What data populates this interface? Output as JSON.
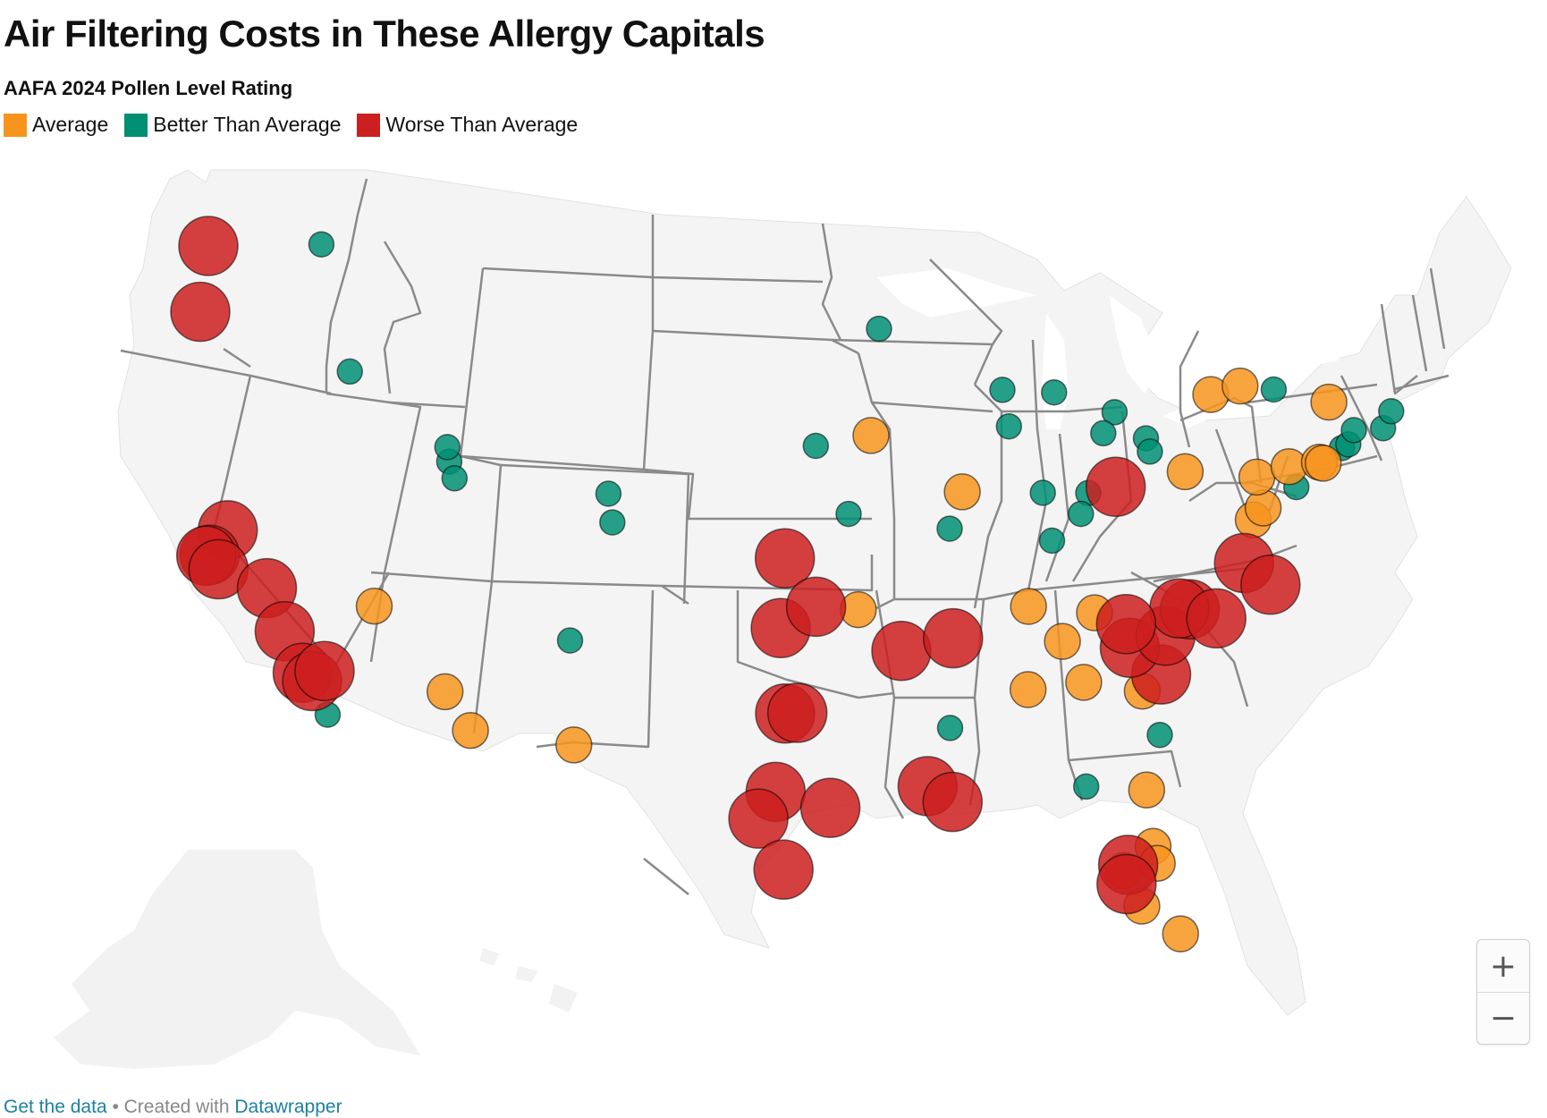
{
  "title": "Air Filtering Costs in These Allergy Capitals",
  "subtitle": "AAFA 2024 Pollen Level Rating",
  "legend": [
    {
      "label": "Average",
      "color": "#f7941d"
    },
    {
      "label": "Better Than Average",
      "color": "#008f73"
    },
    {
      "label": "Worse Than Average",
      "color": "#cc1f1f"
    }
  ],
  "zoom": {
    "in_label": "+",
    "out_label": "−"
  },
  "footer": {
    "data_link": "Get the data",
    "separator": "• Created with",
    "tool_link": "Datawrapper"
  },
  "colors": {
    "average": "#f7941d",
    "better": "#008f73",
    "worse": "#cc1f1f",
    "land": "#f4f4f4",
    "border": "#777777"
  },
  "markers": [
    {
      "lon": -122.33,
      "lat": 47.61,
      "rating": "worse"
    },
    {
      "lon": -117.43,
      "lat": 47.66,
      "rating": "better"
    },
    {
      "lon": -122.68,
      "lat": 45.52,
      "rating": "worse"
    },
    {
      "lon": -116.2,
      "lat": 43.62,
      "rating": "better"
    },
    {
      "lon": -121.49,
      "lat": 38.58,
      "rating": "worse"
    },
    {
      "lon": -122.27,
      "lat": 37.8,
      "rating": "worse"
    },
    {
      "lon": -122.42,
      "lat": 37.77,
      "rating": "worse"
    },
    {
      "lon": -121.89,
      "lat": 37.34,
      "rating": "worse"
    },
    {
      "lon": -119.79,
      "lat": 36.74,
      "rating": "worse"
    },
    {
      "lon": -119.02,
      "lat": 35.37,
      "rating": "worse"
    },
    {
      "lon": -118.24,
      "lat": 34.05,
      "rating": "worse"
    },
    {
      "lon": -117.83,
      "lat": 33.79,
      "rating": "worse"
    },
    {
      "lon": -117.29,
      "lat": 34.11,
      "rating": "worse"
    },
    {
      "lon": -117.16,
      "lat": 32.72,
      "rating": "better"
    },
    {
      "lon": -115.14,
      "lat": 36.17,
      "rating": "average"
    },
    {
      "lon": -111.89,
      "lat": 40.76,
      "rating": "better"
    },
    {
      "lon": -111.97,
      "lat": 41.22,
      "rating": "better"
    },
    {
      "lon": -111.66,
      "lat": 40.23,
      "rating": "better"
    },
    {
      "lon": -112.07,
      "lat": 33.45,
      "rating": "average"
    },
    {
      "lon": -110.97,
      "lat": 32.22,
      "rating": "average"
    },
    {
      "lon": -104.99,
      "lat": 39.74,
      "rating": "better"
    },
    {
      "lon": -104.82,
      "lat": 38.83,
      "rating": "better"
    },
    {
      "lon": -106.65,
      "lat": 35.08,
      "rating": "better"
    },
    {
      "lon": -106.49,
      "lat": 31.76,
      "rating": "average"
    },
    {
      "lon": -96.0,
      "lat": 41.26,
      "rating": "better"
    },
    {
      "lon": -93.61,
      "lat": 41.59,
      "rating": "average"
    },
    {
      "lon": -97.34,
      "lat": 37.69,
      "rating": "worse"
    },
    {
      "lon": -94.58,
      "lat": 39.1,
      "rating": "better"
    },
    {
      "lon": -97.52,
      "lat": 35.47,
      "rating": "worse"
    },
    {
      "lon": -95.99,
      "lat": 36.15,
      "rating": "worse"
    },
    {
      "lon": -94.16,
      "lat": 36.06,
      "rating": "average"
    },
    {
      "lon": -92.29,
      "lat": 34.75,
      "rating": "worse"
    },
    {
      "lon": -97.33,
      "lat": 32.76,
      "rating": "worse"
    },
    {
      "lon": -96.8,
      "lat": 32.78,
      "rating": "worse"
    },
    {
      "lon": -97.74,
      "lat": 30.27,
      "rating": "worse"
    },
    {
      "lon": -98.49,
      "lat": 29.42,
      "rating": "worse"
    },
    {
      "lon": -95.37,
      "lat": 29.76,
      "rating": "worse"
    },
    {
      "lon": -97.4,
      "lat": 27.8,
      "rating": "worse"
    },
    {
      "lon": -93.26,
      "lat": 44.98,
      "rating": "better"
    },
    {
      "lon": -87.91,
      "lat": 43.04,
      "rating": "better"
    },
    {
      "lon": -87.63,
      "lat": 41.88,
      "rating": "better"
    },
    {
      "lon": -85.67,
      "lat": 42.96,
      "rating": "better"
    },
    {
      "lon": -83.05,
      "lat": 42.33,
      "rating": "better"
    },
    {
      "lon": -83.54,
      "lat": 41.66,
      "rating": "better"
    },
    {
      "lon": -81.69,
      "lat": 41.5,
      "rating": "better"
    },
    {
      "lon": -81.52,
      "lat": 41.08,
      "rating": "better"
    },
    {
      "lon": -89.65,
      "lat": 39.8,
      "rating": "average"
    },
    {
      "lon": -90.2,
      "lat": 38.63,
      "rating": "better"
    },
    {
      "lon": -86.16,
      "lat": 39.77,
      "rating": "better"
    },
    {
      "lon": -84.19,
      "lat": 39.76,
      "rating": "better"
    },
    {
      "lon": -84.51,
      "lat": 39.1,
      "rating": "better"
    },
    {
      "lon": -85.76,
      "lat": 38.25,
      "rating": "better"
    },
    {
      "lon": -83.0,
      "lat": 39.96,
      "rating": "worse"
    },
    {
      "lon": -79.99,
      "lat": 40.44,
      "rating": "average"
    },
    {
      "lon": -90.05,
      "lat": 35.15,
      "rating": "worse"
    },
    {
      "lon": -86.78,
      "lat": 36.16,
      "rating": "average"
    },
    {
      "lon": -83.92,
      "lat": 35.96,
      "rating": "average"
    },
    {
      "lon": -85.31,
      "lat": 35.05,
      "rating": "average"
    },
    {
      "lon": -84.39,
      "lat": 33.75,
      "rating": "average"
    },
    {
      "lon": -86.8,
      "lat": 33.52,
      "rating": "average"
    },
    {
      "lon": -90.18,
      "lat": 32.3,
      "rating": "better"
    },
    {
      "lon": -84.28,
      "lat": 30.44,
      "rating": "better"
    },
    {
      "lon": -91.15,
      "lat": 30.45,
      "rating": "worse"
    },
    {
      "lon": -90.07,
      "lat": 29.95,
      "rating": "worse"
    },
    {
      "lon": -81.66,
      "lat": 30.33,
      "rating": "average"
    },
    {
      "lon": -81.38,
      "lat": 28.54,
      "rating": "average"
    },
    {
      "lon": -82.46,
      "lat": 27.95,
      "rating": "worse"
    },
    {
      "lon": -82.64,
      "lat": 27.77,
      "rating": "average"
    },
    {
      "lon": -81.2,
      "lat": 28.0,
      "rating": "average"
    },
    {
      "lon": -82.53,
      "lat": 27.34,
      "rating": "worse"
    },
    {
      "lon": -81.87,
      "lat": 26.64,
      "rating": "average"
    },
    {
      "lon": -80.19,
      "lat": 25.76,
      "rating": "average"
    },
    {
      "lon": -81.09,
      "lat": 32.08,
      "rating": "better"
    },
    {
      "lon": -81.03,
      "lat": 34.0,
      "rating": "worse"
    },
    {
      "lon": -82.39,
      "lat": 34.85,
      "rating": "worse"
    },
    {
      "lon": -81.85,
      "lat": 33.47,
      "rating": "average"
    },
    {
      "lon": -80.84,
      "lat": 35.23,
      "rating": "worse"
    },
    {
      "lon": -79.79,
      "lat": 36.07,
      "rating": "worse"
    },
    {
      "lon": -80.24,
      "lat": 36.1,
      "rating": "worse"
    },
    {
      "lon": -78.64,
      "lat": 35.78,
      "rating": "worse"
    },
    {
      "lon": -82.55,
      "lat": 35.6,
      "rating": "worse"
    },
    {
      "lon": -77.44,
      "lat": 37.54,
      "rating": "worse"
    },
    {
      "lon": -76.29,
      "lat": 36.85,
      "rating": "worse"
    },
    {
      "lon": -77.04,
      "lat": 38.91,
      "rating": "average"
    },
    {
      "lon": -76.61,
      "lat": 39.29,
      "rating": "average"
    },
    {
      "lon": -76.88,
      "lat": 40.27,
      "rating": "average"
    },
    {
      "lon": -75.17,
      "lat": 39.95,
      "rating": "better"
    },
    {
      "lon": -75.49,
      "lat": 40.6,
      "rating": "average"
    },
    {
      "lon": -74.17,
      "lat": 40.74,
      "rating": "average"
    },
    {
      "lon": -74.01,
      "lat": 40.71,
      "rating": "average"
    },
    {
      "lon": -73.2,
      "lat": 41.19,
      "rating": "better"
    },
    {
      "lon": -72.92,
      "lat": 41.31,
      "rating": "better"
    },
    {
      "lon": -72.68,
      "lat": 41.76,
      "rating": "better"
    },
    {
      "lon": -71.41,
      "lat": 41.82,
      "rating": "better"
    },
    {
      "lon": -71.06,
      "lat": 42.36,
      "rating": "better"
    },
    {
      "lon": -73.76,
      "lat": 42.65,
      "rating": "average"
    },
    {
      "lon": -76.15,
      "lat": 43.05,
      "rating": "better"
    },
    {
      "lon": -78.88,
      "lat": 42.89,
      "rating": "average"
    },
    {
      "lon": -77.61,
      "lat": 43.16,
      "rating": "average"
    }
  ]
}
